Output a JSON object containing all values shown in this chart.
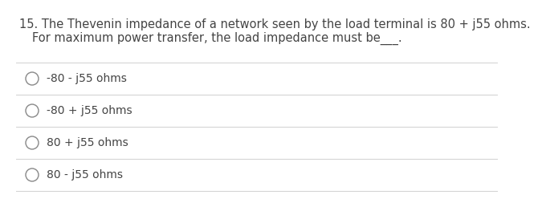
{
  "question_number": "15.",
  "question_line1": "The Thevenin impedance of a network seen by the load terminal is 80 + j55 ohms.",
  "question_line2": "For maximum power transfer, the load impedance must be___.",
  "options": [
    "-80 - j55 ohms",
    "-80 + j55 ohms",
    "80 + j55 ohms",
    "80 - j55 ohms"
  ],
  "bg_color": "#ffffff",
  "text_color": "#444444",
  "line_color": "#d0d0d0",
  "circle_color": "#888888",
  "font_size_question": 10.5,
  "font_size_options": 10.0
}
